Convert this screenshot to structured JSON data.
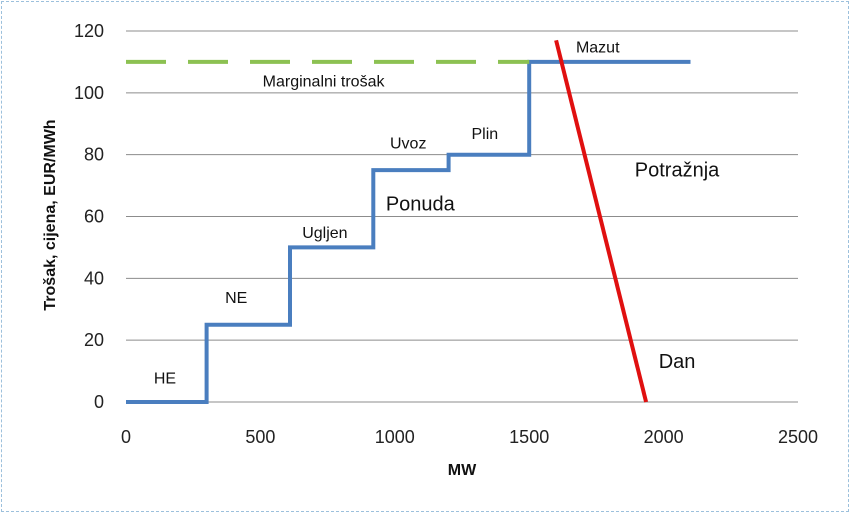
{
  "chart_data": {
    "type": "line",
    "title": "",
    "xlabel": "MW",
    "ylabel": "Trošak, cijena, EUR/MWh",
    "xlim": [
      0,
      2500
    ],
    "ylim": [
      0,
      120
    ],
    "x_ticks": [
      0,
      500,
      1000,
      1500,
      2000,
      2500
    ],
    "y_ticks": [
      0,
      20,
      40,
      60,
      80,
      100,
      120
    ],
    "grid": "horizontal",
    "colors": {
      "supply": "#4a7ebf",
      "demand": "#e01010",
      "marginal": "#8cc152",
      "grid": "#8c8c8c"
    },
    "series": [
      {
        "name": "Ponuda",
        "style": "step",
        "points": [
          [
            0,
            0
          ],
          [
            300,
            0
          ],
          [
            300,
            25
          ],
          [
            610,
            25
          ],
          [
            610,
            50
          ],
          [
            920,
            50
          ],
          [
            920,
            75
          ],
          [
            1200,
            75
          ],
          [
            1200,
            80
          ],
          [
            1500,
            80
          ],
          [
            1500,
            110
          ],
          [
            2100,
            110
          ]
        ]
      },
      {
        "name": "Potražnja",
        "style": "line",
        "points": [
          [
            1600,
            117
          ],
          [
            1935,
            0
          ]
        ]
      },
      {
        "name": "Marginalni trošak",
        "style": "dashed",
        "points": [
          [
            0,
            110
          ],
          [
            1500,
            110
          ]
        ]
      }
    ],
    "annotations": [
      {
        "text": "HE",
        "x": 145,
        "y": 6,
        "size": "small"
      },
      {
        "text": "NE",
        "x": 410,
        "y": 32,
        "size": "small"
      },
      {
        "text": "Ugljen",
        "x": 740,
        "y": 53,
        "size": "small"
      },
      {
        "text": "Uvoz",
        "x": 1050,
        "y": 82,
        "size": "small"
      },
      {
        "text": "Plin",
        "x": 1335,
        "y": 85,
        "size": "small"
      },
      {
        "text": "Mazut",
        "x": 1755,
        "y": 113,
        "size": "small"
      },
      {
        "text": "Marginalni trošak",
        "x": 735,
        "y": 102,
        "size": "small"
      },
      {
        "text": "Ponuda",
        "x": 1095,
        "y": 62,
        "size": "big"
      },
      {
        "text": "Potražnja",
        "x": 2050,
        "y": 73,
        "size": "big"
      },
      {
        "text": "Dan",
        "x": 2050,
        "y": 11,
        "size": "big"
      }
    ]
  }
}
